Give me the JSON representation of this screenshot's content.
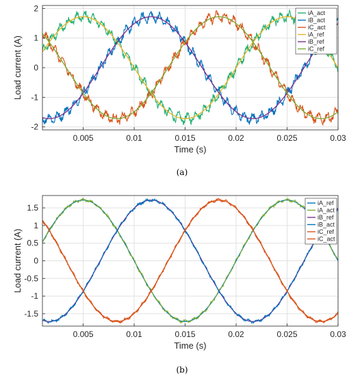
{
  "colors": {
    "blue": "#0072BD",
    "orange": "#D95319",
    "yellow": "#EDB120",
    "purple": "#7E2F8E",
    "green": "#77AC30",
    "green_act": "#20B070"
  },
  "chart_data": [
    {
      "type": "line",
      "caption": "(a)",
      "xlabel": "Time (s)",
      "ylabel": "Load current (A)",
      "xlim": [
        0.001,
        0.03
      ],
      "ylim": [
        -2.1,
        2.1
      ],
      "xticks": [
        0.005,
        0.01,
        0.015,
        0.02,
        0.025,
        0.03
      ],
      "xtick_labels": [
        "0.005",
        "0.01",
        "0.015",
        "0.02",
        "0.025",
        "0.03"
      ],
      "yticks": [
        -2,
        -1,
        0,
        1,
        2
      ],
      "ytick_labels": [
        "-2",
        "-1",
        "0",
        "1",
        "2"
      ],
      "grid": true,
      "legend_position": "top-right",
      "frequency_hz": 50,
      "series": [
        {
          "name": "iA_act",
          "color": "#20B070",
          "amplitude": 1.72,
          "phase_deg": 0,
          "ripple": 0.22
        },
        {
          "name": "iB_act",
          "color": "#0072BD",
          "amplitude": 1.72,
          "phase_deg": -120,
          "ripple": 0.22
        },
        {
          "name": "iC_act",
          "color": "#D95319",
          "amplitude": 1.72,
          "phase_deg": 120,
          "ripple": 0.22
        },
        {
          "name": "iA_ref",
          "color": "#EDB120",
          "amplitude": 1.72,
          "phase_deg": 0,
          "ripple": 0
        },
        {
          "name": "iB_ref",
          "color": "#7E2F8E",
          "amplitude": 1.72,
          "phase_deg": -120,
          "ripple": 0
        },
        {
          "name": "iC_ref",
          "color": "#77AC30",
          "amplitude": 1.72,
          "phase_deg": 120,
          "ripple": 0
        }
      ]
    },
    {
      "type": "line",
      "caption": "(b)",
      "xlabel": "Time (s)",
      "ylabel": "Load current (A)",
      "xlim": [
        0.001,
        0.03
      ],
      "ylim": [
        -1.85,
        1.85
      ],
      "xticks": [
        0.005,
        0.01,
        0.015,
        0.02,
        0.025,
        0.03
      ],
      "xtick_labels": [
        "0.005",
        "0.01",
        "0.015",
        "0.02",
        "0.025",
        "0.03"
      ],
      "yticks": [
        -1.5,
        -1,
        -0.5,
        0,
        0.5,
        1,
        1.5
      ],
      "ytick_labels": [
        "-1.5",
        "-1",
        "-0.5",
        "0",
        "0.5",
        "1",
        "1.5"
      ],
      "grid": true,
      "legend_position": "top-right",
      "frequency_hz": 50,
      "series": [
        {
          "name": "iA_ref",
          "color": "#0072BD",
          "amplitude": 1.72,
          "phase_deg": 0,
          "ripple": 0
        },
        {
          "name": "iA_act",
          "color": "#77AC30",
          "amplitude": 1.72,
          "phase_deg": 0,
          "ripple": 0.05
        },
        {
          "name": "iB_ref",
          "color": "#7E2F8E",
          "amplitude": 1.72,
          "phase_deg": -120,
          "ripple": 0
        },
        {
          "name": "iB_act",
          "color": "#0072BD",
          "amplitude": 1.72,
          "phase_deg": -120,
          "ripple": 0.05
        },
        {
          "name": "iC_ref",
          "color": "#D95319",
          "amplitude": 1.72,
          "phase_deg": 120,
          "ripple": 0
        },
        {
          "name": "iC_act",
          "color": "#D95319",
          "amplitude": 1.72,
          "phase_deg": 120,
          "ripple": 0.05
        }
      ]
    }
  ]
}
